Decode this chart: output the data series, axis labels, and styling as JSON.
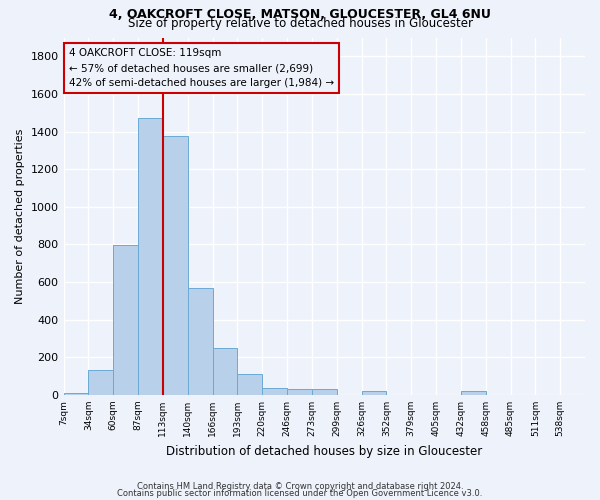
{
  "title1": "4, OAKCROFT CLOSE, MATSON, GLOUCESTER, GL4 6NU",
  "title2": "Size of property relative to detached houses in Gloucester",
  "xlabel": "Distribution of detached houses by size in Gloucester",
  "ylabel": "Number of detached properties",
  "bar_color": "#b8d0ea",
  "bar_edge_color": "#6aaad4",
  "bin_labels": [
    "7sqm",
    "34sqm",
    "60sqm",
    "87sqm",
    "113sqm",
    "140sqm",
    "166sqm",
    "193sqm",
    "220sqm",
    "246sqm",
    "273sqm",
    "299sqm",
    "326sqm",
    "352sqm",
    "379sqm",
    "405sqm",
    "432sqm",
    "458sqm",
    "485sqm",
    "511sqm",
    "538sqm"
  ],
  "bar_heights": [
    10,
    130,
    795,
    1470,
    1375,
    570,
    250,
    110,
    35,
    30,
    30,
    0,
    20,
    0,
    0,
    0,
    20,
    0,
    0,
    0,
    0
  ],
  "property_size_bin": 4,
  "vline_color": "#cc0000",
  "annotation_line1": "4 OAKCROFT CLOSE: 119sqm",
  "annotation_line2": "← 57% of detached houses are smaller (2,699)",
  "annotation_line3": "42% of semi-detached houses are larger (1,984) →",
  "annotation_box_color": "#cc0000",
  "ylim": [
    0,
    1900
  ],
  "yticks": [
    0,
    200,
    400,
    600,
    800,
    1000,
    1200,
    1400,
    1600,
    1800
  ],
  "footer1": "Contains HM Land Registry data © Crown copyright and database right 2024.",
  "footer2": "Contains public sector information licensed under the Open Government Licence v3.0.",
  "background_color": "#eef2fb",
  "grid_color": "#ffffff"
}
